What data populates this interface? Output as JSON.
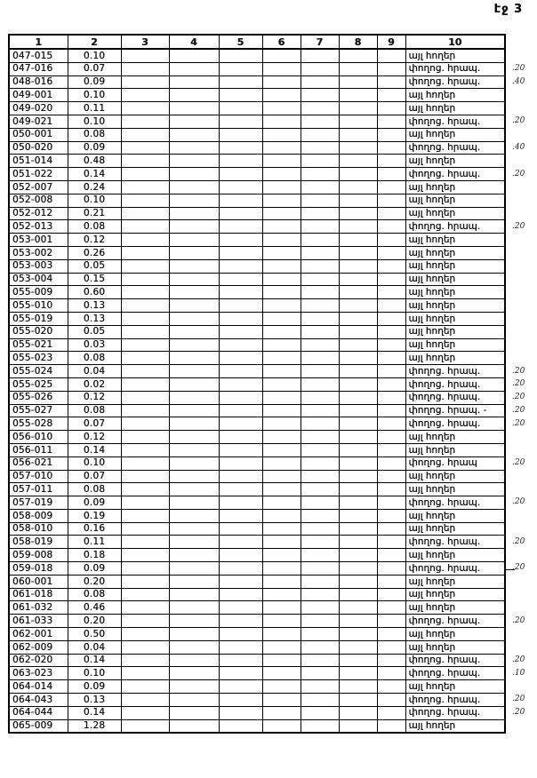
{
  "page": {
    "title": "էջ 3"
  },
  "labels": {
    "other_lands": "այլ հողեր",
    "street_public": "փողոց. հրապ."
  },
  "table": {
    "headers": [
      "1",
      "2",
      "3",
      "4",
      "5",
      "6",
      "7",
      "8",
      "9",
      "10"
    ],
    "rows": [
      {
        "code": "047-015",
        "area": "0.10",
        "land_use": "այլ հողեր",
        "note": ""
      },
      {
        "code": "047-016",
        "area": "0.07",
        "land_use": "փողոց. հրապ.",
        "note": ".20"
      },
      {
        "code": "048-016",
        "area": "0.09",
        "land_use": "փողոց. հրապ.",
        "note": ".40"
      },
      {
        "code": "049-001",
        "area": "0.10",
        "land_use": "այլ հողեր",
        "note": ""
      },
      {
        "code": "049-020",
        "area": "0.11",
        "land_use": "այլ հողեր",
        "note": ""
      },
      {
        "code": "049-021",
        "area": "0.10",
        "land_use": "փողոց. հրապ.",
        "note": ".20"
      },
      {
        "code": "050-001",
        "area": "0.08",
        "land_use": "այլ հողեր",
        "note": ""
      },
      {
        "code": "050-020",
        "area": "0.09",
        "land_use": "փողոց. հրապ.",
        "note": ".40"
      },
      {
        "code": "051-014",
        "area": "0.48",
        "land_use": "այլ հողեր",
        "note": ""
      },
      {
        "code": "051-022",
        "area": "0.14",
        "land_use": "փողոց. հրապ.",
        "note": ".20"
      },
      {
        "code": "052-007",
        "area": "0.24",
        "land_use": "այլ հողեր",
        "note": ""
      },
      {
        "code": "052-008",
        "area": "0.10",
        "land_use": "այլ հողեր",
        "note": ""
      },
      {
        "code": "052-012",
        "area": "0.21",
        "land_use": "այլ հողեր",
        "note": ""
      },
      {
        "code": "052-013",
        "area": "0.08",
        "land_use": "փողոց. հրապ.",
        "note": ".20"
      },
      {
        "code": "053-001",
        "area": "0.12",
        "land_use": "այլ հողեր",
        "note": ""
      },
      {
        "code": "053-002",
        "area": "0.26",
        "land_use": "այլ հողեր",
        "note": ""
      },
      {
        "code": "053-003",
        "area": "0.05",
        "land_use": "այլ հողեր",
        "note": ""
      },
      {
        "code": "053-004",
        "area": "0.15",
        "land_use": "այլ հողեր",
        "note": ""
      },
      {
        "code": "055-009",
        "area": "0.60",
        "land_use": "այլ հողեր",
        "note": ""
      },
      {
        "code": "055-010",
        "area": "0.13",
        "land_use": "այլ հողեր",
        "note": ""
      },
      {
        "code": "055-019",
        "area": "0.13",
        "land_use": "այլ հողեր",
        "note": ""
      },
      {
        "code": "055-020",
        "area": "0.05",
        "land_use": "այլ հողեր",
        "note": ""
      },
      {
        "code": "055-021",
        "area": "0.03",
        "land_use": "այլ հողեր",
        "note": ""
      },
      {
        "code": "055-023",
        "area": "0.08",
        "land_use": "այլ հողեր",
        "note": ""
      },
      {
        "code": "055-024",
        "area": "0.04",
        "land_use": "փողոց. հրապ.",
        "note": ".20"
      },
      {
        "code": "055-025",
        "area": "0.02",
        "land_use": "փողոց. հրապ.",
        "note": ".20"
      },
      {
        "code": "055-026",
        "area": "0.12",
        "land_use": "փողոց. հրապ.",
        "note": ".20"
      },
      {
        "code": "055-027",
        "area": "0.08",
        "land_use": "փողոց. հրապ. -",
        "note": ".20"
      },
      {
        "code": "055-028",
        "area": "0.07",
        "land_use": "փողոց. հրապ.",
        "note": ".20"
      },
      {
        "code": "056-010",
        "area": "0.12",
        "land_use": "այլ հողեր",
        "note": ""
      },
      {
        "code": "056-011",
        "area": "0.14",
        "land_use": "այլ հողեր",
        "note": ""
      },
      {
        "code": "056-021",
        "area": "0.10",
        "land_use": "փողոց. հրապ",
        "note": ".20"
      },
      {
        "code": "057-010",
        "area": "0.07",
        "land_use": "այլ հողեր",
        "note": ""
      },
      {
        "code": "057-011",
        "area": "0.08",
        "land_use": "այլ հողեր",
        "note": ""
      },
      {
        "code": "057-019",
        "area": "0.09",
        "land_use": "փողոց. հրապ.",
        "note": ".20"
      },
      {
        "code": "058-009",
        "area": "0.19",
        "land_use": "այլ հողեր",
        "note": ""
      },
      {
        "code": "058-010",
        "area": "0.16",
        "land_use": "այլ հողեր",
        "note": ""
      },
      {
        "code": "058-019",
        "area": "0.11",
        "land_use": "փողոց. հրապ.",
        "note": ".20"
      },
      {
        "code": "059-008",
        "area": "0.18",
        "land_use": "այլ հողեր",
        "note": ""
      },
      {
        "code": "059-018",
        "area": "0.09",
        "land_use": "փողոց. հրապ.",
        "note": ".20",
        "note_dash": true
      },
      {
        "code": "060-001",
        "area": "0.20",
        "land_use": "այլ հողեր",
        "note": ""
      },
      {
        "code": "061-018",
        "area": "0.08",
        "land_use": "այլ հողեր",
        "note": ""
      },
      {
        "code": "061-032",
        "area": "0.46",
        "land_use": "այլ հողեր",
        "note": ""
      },
      {
        "code": "061-033",
        "area": "0.20",
        "land_use": "փողոց. հրապ.",
        "note": ".20"
      },
      {
        "code": "062-001",
        "area": "0.50",
        "land_use": "այլ հողեր",
        "note": ""
      },
      {
        "code": "062-009",
        "area": "0.04",
        "land_use": "այլ հողեր",
        "note": ""
      },
      {
        "code": "062-020",
        "area": "0.14",
        "land_use": "փողոց. հրապ.",
        "note": ".20"
      },
      {
        "code": "063-023",
        "area": "0.10",
        "land_use": "փողոց. հրապ.",
        "note": ".10"
      },
      {
        "code": "064-014",
        "area": "0.09",
        "land_use": "այլ հողեր",
        "note": ""
      },
      {
        "code": "064-043",
        "area": "0.13",
        "land_use": "փողոց. հրապ.",
        "note": ".20"
      },
      {
        "code": "064-044",
        "area": "0.14",
        "land_use": "փողոց. հրապ.",
        "note": ".20"
      },
      {
        "code": "065-009",
        "area": "1.28",
        "land_use": "այլ հողեր",
        "note": ""
      }
    ]
  }
}
